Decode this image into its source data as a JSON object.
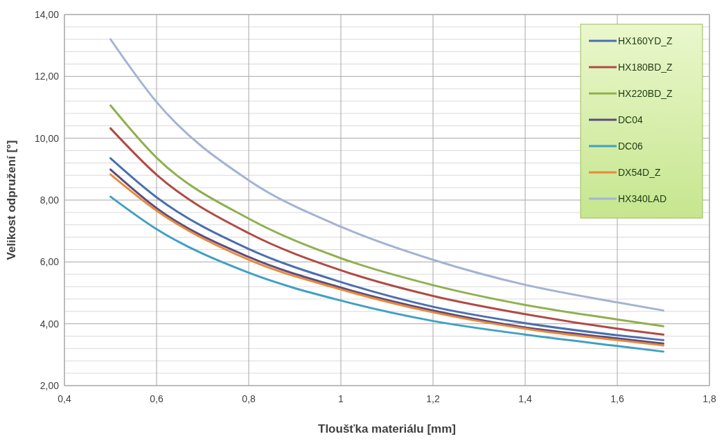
{
  "chart_data": {
    "type": "line",
    "xlabel": "Tloušťka materiálu [mm]",
    "ylabel": "Velikost odpružení [°]",
    "x": [
      0.5,
      0.6,
      0.8,
      1.0,
      1.2,
      1.4,
      1.6,
      1.7
    ],
    "series": [
      {
        "name": "HX160YD_Z",
        "color": "#4a6fb0",
        "values": [
          9.35,
          8.09,
          6.42,
          5.35,
          4.55,
          4.02,
          3.63,
          3.47
        ]
      },
      {
        "name": "HX180BD_Z",
        "color": "#b04a45",
        "values": [
          10.32,
          8.82,
          6.93,
          5.73,
          4.9,
          4.31,
          3.84,
          3.65
        ]
      },
      {
        "name": "HX220BD_Z",
        "color": "#8fb04e",
        "values": [
          11.06,
          9.37,
          7.4,
          6.12,
          5.25,
          4.61,
          4.14,
          3.92
        ]
      },
      {
        "name": "DC04",
        "color": "#604a7b",
        "values": [
          8.99,
          7.74,
          6.16,
          5.17,
          4.43,
          3.88,
          3.53,
          3.36
        ]
      },
      {
        "name": "DC06",
        "color": "#3fa0c4",
        "values": [
          8.11,
          7.06,
          5.65,
          4.75,
          4.09,
          3.65,
          3.28,
          3.1
        ]
      },
      {
        "name": "DX54D_Z",
        "color": "#e88a3a",
        "values": [
          8.83,
          7.66,
          6.07,
          5.11,
          4.37,
          3.84,
          3.47,
          3.3
        ]
      },
      {
        "name": "HX340LAD",
        "color": "#a3b3d3",
        "values": [
          13.2,
          11.17,
          8.64,
          7.14,
          6.07,
          5.26,
          4.69,
          4.43
        ]
      }
    ],
    "xlim": [
      0.4,
      1.8
    ],
    "xticks": [
      {
        "value": 0.4,
        "label": "0,4"
      },
      {
        "value": 0.6,
        "label": "0,6"
      },
      {
        "value": 0.8,
        "label": "0,8"
      },
      1,
      {
        "value": 1.2,
        "label": "1,2"
      },
      {
        "value": 1.4,
        "label": "1,4"
      },
      {
        "value": 1.6,
        "label": "1,6"
      },
      {
        "value": 1.8,
        "label": "1,8"
      }
    ],
    "ylim": [
      2,
      14
    ],
    "yticks": [
      {
        "value": 2,
        "label": "2,00"
      },
      {
        "value": 2.4,
        "label": null
      },
      {
        "value": 2.8,
        "label": null
      },
      {
        "value": 3.2,
        "label": null
      },
      {
        "value": 3.6,
        "label": null
      },
      {
        "value": 4,
        "label": "4,00"
      },
      {
        "value": 4.4,
        "label": null
      },
      {
        "value": 4.8,
        "label": null
      },
      {
        "value": 5.2,
        "label": null
      },
      {
        "value": 5.6,
        "label": null
      },
      {
        "value": 6,
        "label": "6,00"
      },
      {
        "value": 6.4,
        "label": null
      },
      {
        "value": 6.8,
        "label": null
      },
      {
        "value": 7.2,
        "label": null
      },
      {
        "value": 7.6,
        "label": null
      },
      {
        "value": 8,
        "label": "8,00"
      },
      {
        "value": 8.4,
        "label": null
      },
      {
        "value": 8.8,
        "label": null
      },
      {
        "value": 9.2,
        "label": null
      },
      {
        "value": 9.6,
        "label": null
      },
      {
        "value": 10,
        "label": "10,00"
      },
      {
        "value": 10.4,
        "label": null
      },
      {
        "value": 10.8,
        "label": null
      },
      {
        "value": 11.2,
        "label": null
      },
      {
        "value": 11.6,
        "label": null
      },
      {
        "value": 12,
        "label": "12,00"
      },
      {
        "value": 12.4,
        "label": null
      },
      {
        "value": 12.8,
        "label": null
      },
      {
        "value": 13.2,
        "label": null
      },
      {
        "value": 13.6,
        "label": null
      },
      {
        "value": 14,
        "label": "14,00"
      }
    ],
    "grid": true,
    "legend": "top right",
    "marker": "none",
    "line_style": "solid"
  }
}
